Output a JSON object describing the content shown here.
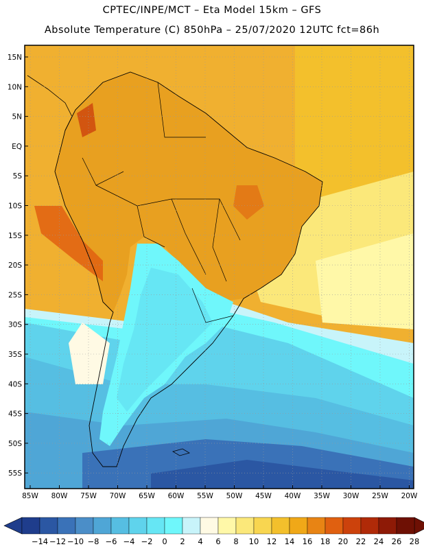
{
  "title": {
    "line1": "CPTEC/INPE/MCT –  Eta Model 15km – GFS",
    "line2": "Absolute Temperature (C) 850hPa – 25/07/2020 12UTC fct=86h"
  },
  "map": {
    "lat_labels": [
      "15N",
      "10N",
      "5N",
      "EQ",
      "5S",
      "10S",
      "15S",
      "20S",
      "25S",
      "30S",
      "35S",
      "40S",
      "45S",
      "50S",
      "55S"
    ],
    "lon_labels": [
      "85W",
      "80W",
      "75W",
      "70W",
      "65W",
      "60W",
      "55W",
      "50W",
      "45W",
      "40W",
      "35W",
      "30W",
      "25W",
      "20W"
    ],
    "land_fill": "#e8a020",
    "ocean_north_fill": "#f0b030"
  },
  "colorbar": {
    "labels": [
      "-14",
      "-12",
      "-10",
      "-8",
      "-6",
      "-4",
      "-2",
      "0",
      "2",
      "4",
      "6",
      "8",
      "10",
      "12",
      "14",
      "16",
      "18",
      "20",
      "22",
      "24",
      "26",
      "28"
    ],
    "colors": [
      "#1f3d8c",
      "#2b57a3",
      "#3a72b8",
      "#4b8ec8",
      "#4fa6d6",
      "#56bee2",
      "#5fd3ec",
      "#66e6f4",
      "#6ff7fb",
      "#c8f4fa",
      "#fffae4",
      "#fff8a8",
      "#fbe87a",
      "#f8d650",
      "#f3c02c",
      "#f0a818",
      "#e88414",
      "#e06010",
      "#cc420c",
      "#b02a08",
      "#8e1a06",
      "#6e1004"
    ],
    "left_arrow_color": "#1f3d8c",
    "right_arrow_color": "#6e1004"
  }
}
